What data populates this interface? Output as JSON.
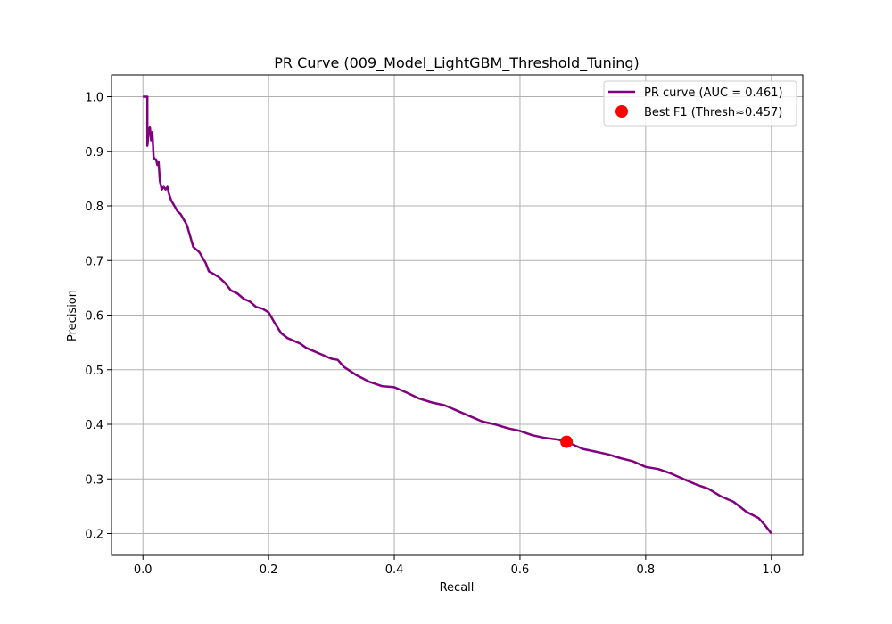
{
  "chart_data": {
    "type": "line",
    "title": "PR Curve (009_Model_LightGBM_Threshold_Tuning)",
    "xlabel": "Recall",
    "ylabel": "Precision",
    "xlim": [
      -0.05,
      1.05
    ],
    "ylim": [
      0.16,
      1.04
    ],
    "xticks": [
      0.0,
      0.2,
      0.4,
      0.6,
      0.8,
      1.0
    ],
    "xtick_labels": [
      "0.0",
      "0.2",
      "0.4",
      "0.6",
      "0.8",
      "1.0"
    ],
    "yticks": [
      0.2,
      0.3,
      0.4,
      0.5,
      0.6,
      0.7,
      0.8,
      0.9,
      1.0
    ],
    "ytick_labels": [
      "0.2",
      "0.3",
      "0.4",
      "0.5",
      "0.6",
      "0.7",
      "0.8",
      "0.9",
      "1.0"
    ],
    "grid": true,
    "legend_position": "top-right",
    "series": [
      {
        "name": "PR curve (AUC = 0.461)",
        "color": "#800080",
        "x": [
          0.0,
          0.007,
          0.007,
          0.009,
          0.011,
          0.013,
          0.015,
          0.017,
          0.019,
          0.021,
          0.023,
          0.025,
          0.027,
          0.03,
          0.033,
          0.036,
          0.039,
          0.042,
          0.045,
          0.05,
          0.055,
          0.06,
          0.065,
          0.07,
          0.075,
          0.08,
          0.085,
          0.09,
          0.095,
          0.1,
          0.105,
          0.11,
          0.12,
          0.13,
          0.14,
          0.15,
          0.16,
          0.17,
          0.18,
          0.19,
          0.2,
          0.205,
          0.21,
          0.22,
          0.23,
          0.24,
          0.25,
          0.26,
          0.27,
          0.28,
          0.29,
          0.3,
          0.31,
          0.32,
          0.34,
          0.36,
          0.38,
          0.4,
          0.42,
          0.44,
          0.46,
          0.48,
          0.5,
          0.52,
          0.54,
          0.56,
          0.58,
          0.6,
          0.62,
          0.64,
          0.66,
          0.674,
          0.7,
          0.72,
          0.74,
          0.76,
          0.78,
          0.8,
          0.82,
          0.84,
          0.86,
          0.88,
          0.9,
          0.92,
          0.94,
          0.96,
          0.98,
          0.99,
          1.0
        ],
        "y": [
          1.0,
          1.0,
          0.91,
          0.935,
          0.945,
          0.92,
          0.935,
          0.89,
          0.885,
          0.885,
          0.875,
          0.88,
          0.845,
          0.83,
          0.835,
          0.83,
          0.835,
          0.82,
          0.81,
          0.8,
          0.79,
          0.785,
          0.775,
          0.765,
          0.745,
          0.725,
          0.72,
          0.715,
          0.705,
          0.695,
          0.68,
          0.677,
          0.67,
          0.66,
          0.645,
          0.64,
          0.63,
          0.625,
          0.615,
          0.612,
          0.605,
          0.595,
          0.585,
          0.567,
          0.558,
          0.553,
          0.548,
          0.54,
          0.535,
          0.53,
          0.525,
          0.52,
          0.518,
          0.505,
          0.49,
          0.478,
          0.47,
          0.468,
          0.458,
          0.447,
          0.44,
          0.435,
          0.425,
          0.415,
          0.405,
          0.4,
          0.393,
          0.388,
          0.38,
          0.375,
          0.372,
          0.368,
          0.355,
          0.35,
          0.345,
          0.338,
          0.332,
          0.322,
          0.318,
          0.31,
          0.3,
          0.29,
          0.282,
          0.268,
          0.258,
          0.24,
          0.228,
          0.215,
          0.2
        ]
      }
    ],
    "marker": {
      "name": "Best F1 (Thresh≈0.457)",
      "color": "#ff0000",
      "x": 0.674,
      "y": 0.368
    }
  }
}
